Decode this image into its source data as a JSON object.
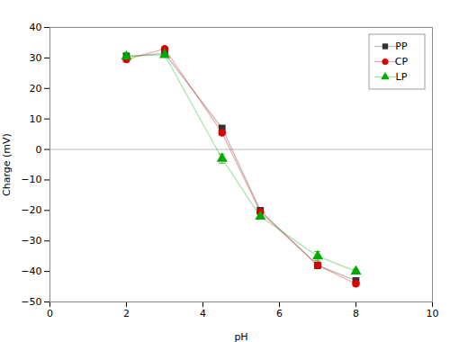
{
  "chart_data": {
    "type": "line",
    "xlabel": "pH",
    "ylabel": "Charge (mV)",
    "xlim": [
      0,
      10
    ],
    "ylim": [
      -50,
      40
    ],
    "xticks": [
      0,
      2,
      4,
      6,
      8,
      10
    ],
    "yticks": [
      -50,
      -40,
      -30,
      -20,
      -10,
      0,
      10,
      20,
      30,
      40
    ],
    "x": [
      2,
      3,
      4.5,
      5.5,
      7,
      8
    ],
    "series": [
      {
        "name": "PP",
        "color": "#333333",
        "marker": "square",
        "values": [
          30.5,
          31.5,
          7,
          -20,
          -38,
          -43
        ],
        "errors": [
          0.8,
          0.5,
          0.8,
          0.8,
          1.0,
          0.8
        ]
      },
      {
        "name": "CP",
        "color": "#dd0000",
        "marker": "circle",
        "values": [
          29.5,
          33,
          5.5,
          -20.5,
          -38,
          -44
        ],
        "errors": [
          0.8,
          0.5,
          0.8,
          0.8,
          1.0,
          0.8
        ]
      },
      {
        "name": "LP",
        "color": "#00aa00",
        "marker": "triangle",
        "values": [
          30.5,
          31,
          -3,
          -22,
          -35,
          -40
        ],
        "errors": [
          1.2,
          0.5,
          1.5,
          0.8,
          1.5,
          0.8
        ]
      }
    ],
    "hline": 0,
    "grid": false,
    "legend": "upper right"
  }
}
